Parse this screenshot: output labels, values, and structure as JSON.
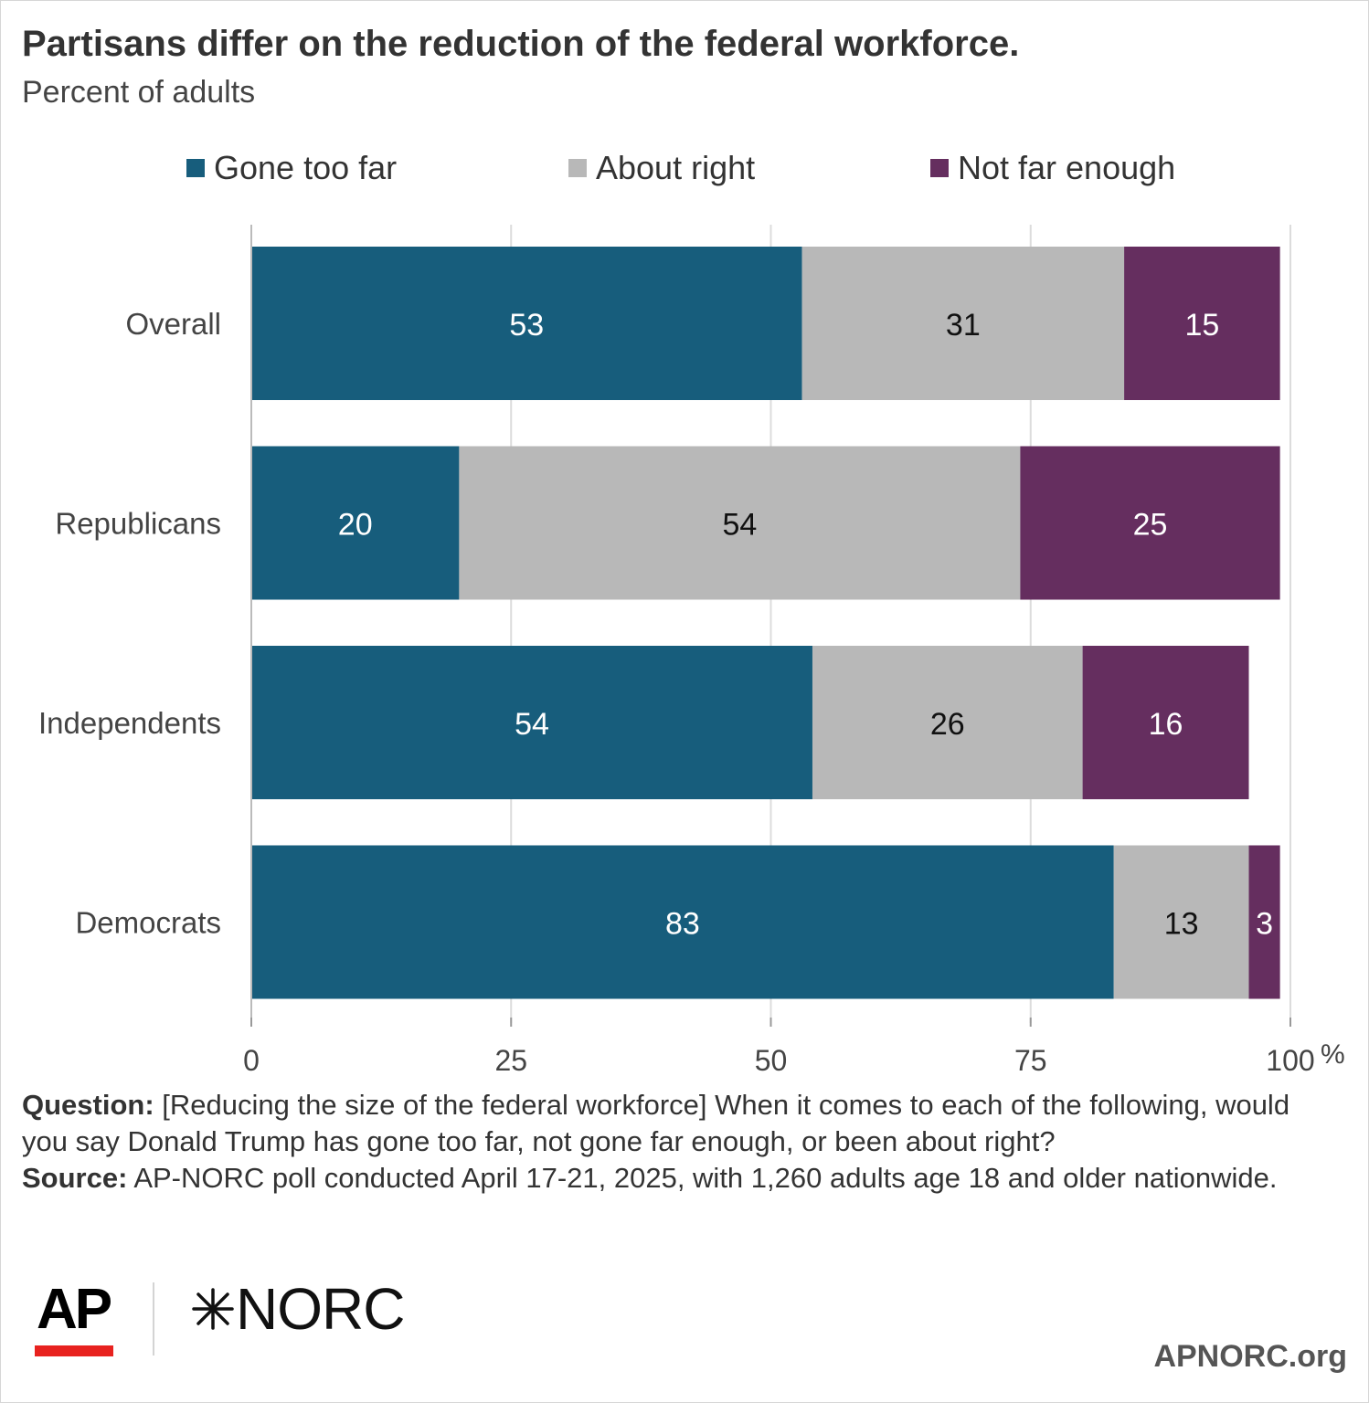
{
  "title": "Partisans differ on the reduction of the federal workforce.",
  "subtitle": "Percent of adults",
  "notes": {
    "question_label": "Question:",
    "question_text": "[Reducing the size of the federal workforce] When it comes to each of the following, would you say Donald Trump has gone too far, not gone far enough, or been about right?",
    "source_label": "Source:",
    "source_text": "AP-NORC poll conducted April 17-21, 2025, with 1,260 adults age 18 and older nationwide."
  },
  "logos": {
    "ap": "AP",
    "norc": "NORC"
  },
  "footer_url": "APNORC.org",
  "chart_data": {
    "type": "bar",
    "orientation": "horizontal",
    "stacked": true,
    "categories": [
      "Overall",
      "Republicans",
      "Independents",
      "Democrats"
    ],
    "series": [
      {
        "name": "Gone too far",
        "values": [
          53,
          20,
          54,
          83
        ],
        "color": "#175d7c",
        "label_color": "#ffffff"
      },
      {
        "name": "About right",
        "values": [
          31,
          54,
          26,
          13
        ],
        "color": "#b8b8b8",
        "label_color": "#111111"
      },
      {
        "name": "Not far enough",
        "values": [
          15,
          25,
          16,
          3
        ],
        "color": "#652e5f",
        "label_color": "#ffffff"
      }
    ],
    "xlim": [
      0,
      100
    ],
    "xticks": [
      0,
      25,
      50,
      75,
      100
    ],
    "xtick_labels": [
      "0",
      "25",
      "50",
      "75",
      "100"
    ],
    "x_unit": "%",
    "grid": true,
    "legend_position": "top"
  }
}
